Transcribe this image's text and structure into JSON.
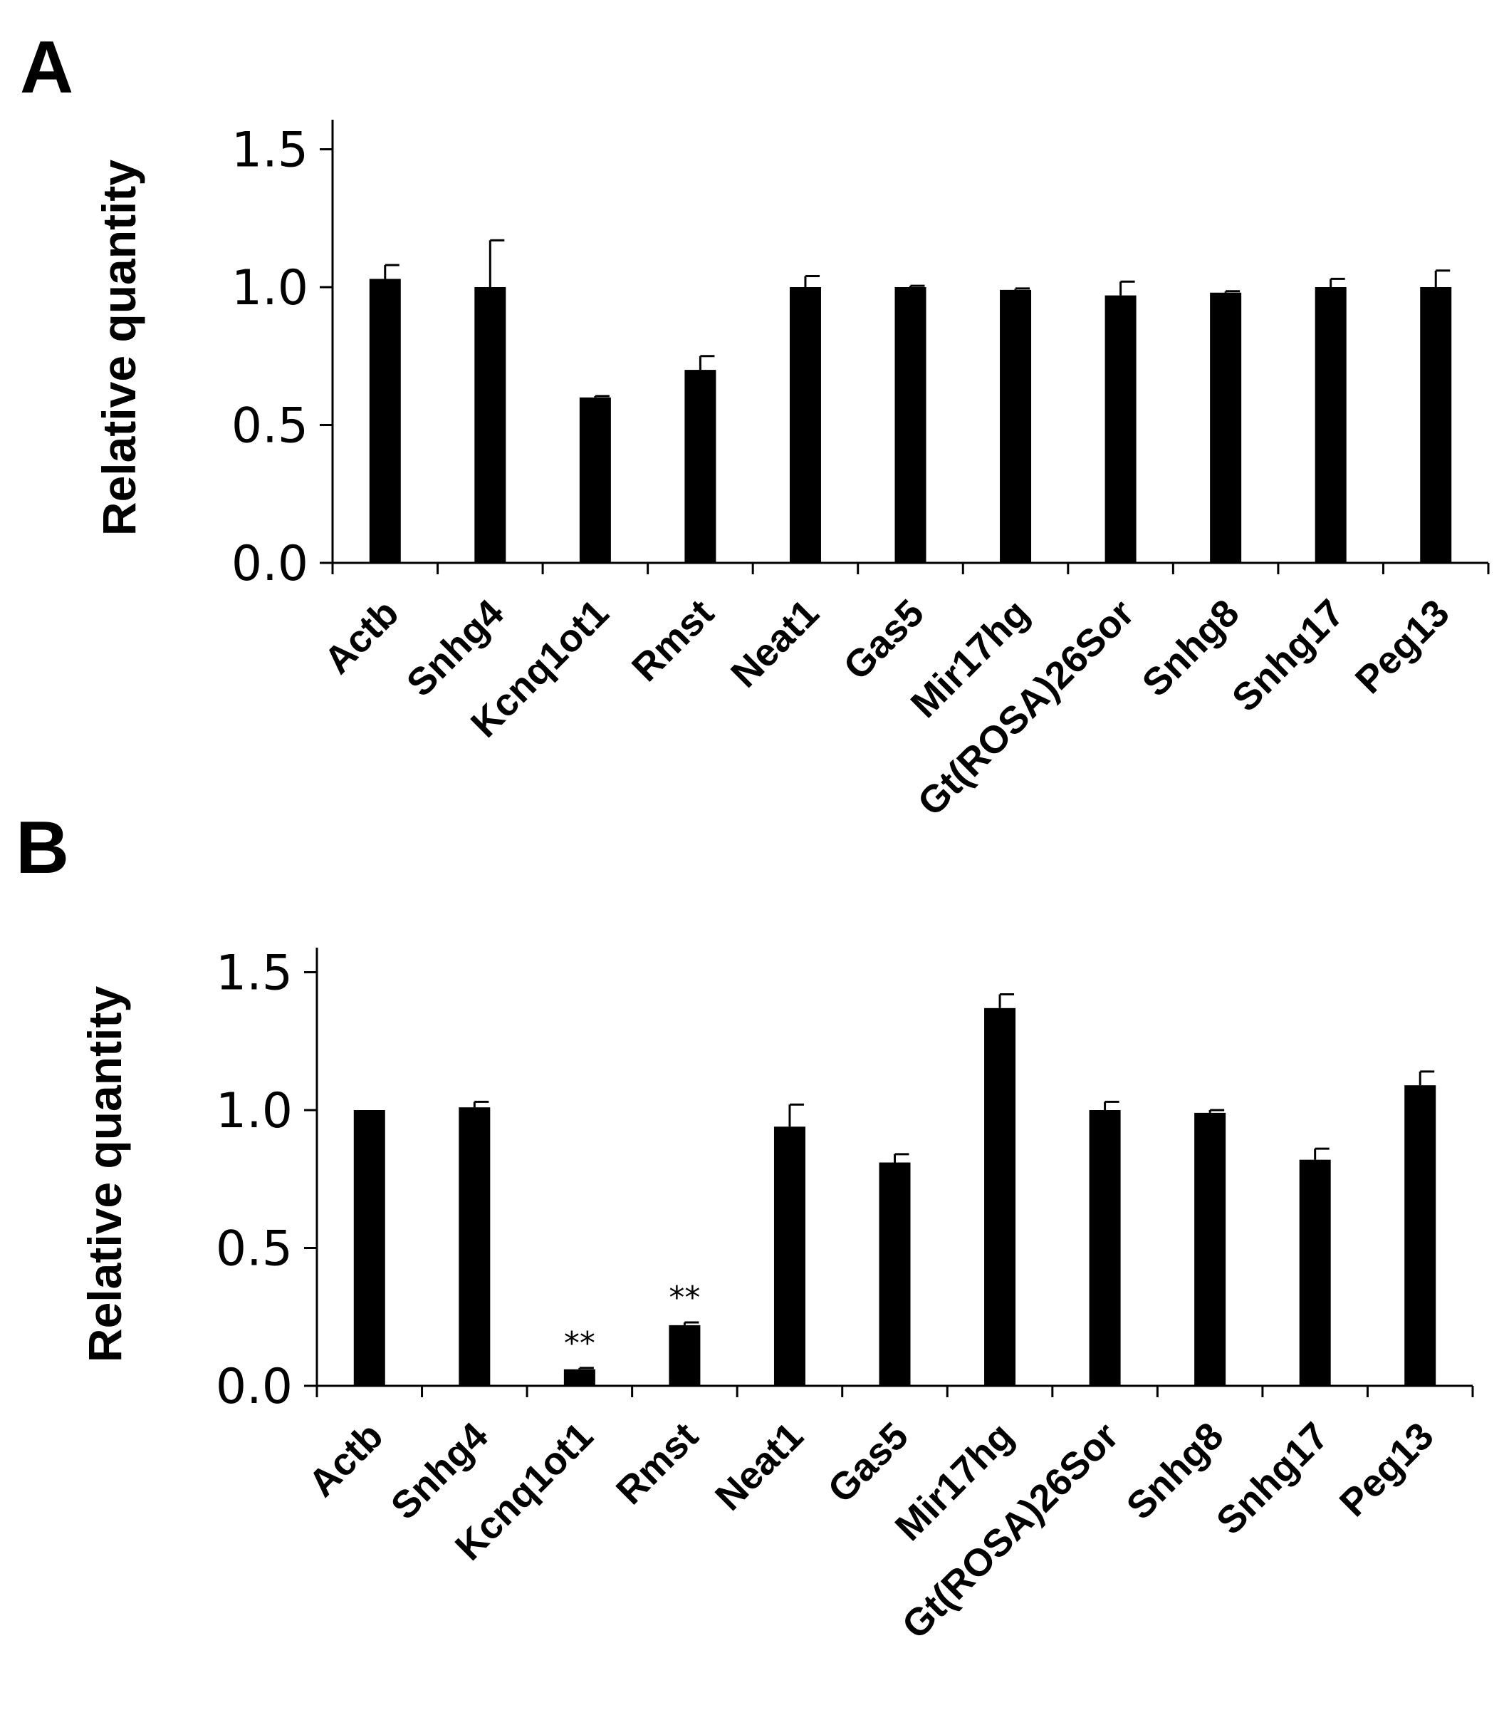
{
  "chart_data": [
    {
      "panel": "A",
      "type": "bar",
      "title": "",
      "xlabel": "",
      "ylabel": "Relative quantity",
      "ylim": [
        0,
        1.6
      ],
      "yticks": [
        "0.0",
        "0.5",
        "1.0",
        "1.5"
      ],
      "categories": [
        "Actb",
        "Snhg4",
        "Kcnq1ot1",
        "Rmst",
        "Neat1",
        "Gas5",
        "Mir17hg",
        "Gt(ROSA)26Sor",
        "Snhg8",
        "Snhg17",
        "Peg13"
      ],
      "values": [
        1.03,
        1.0,
        0.6,
        0.7,
        1.0,
        1.0,
        0.99,
        0.97,
        0.98,
        1.0,
        1.0
      ],
      "errors": [
        0.05,
        0.17,
        0.005,
        0.05,
        0.04,
        0.005,
        0.005,
        0.05,
        0.005,
        0.03,
        0.06
      ],
      "annotations": [
        "",
        "",
        "",
        "",
        "",
        "",
        "",
        "",
        "",
        "",
        ""
      ]
    },
    {
      "panel": "B",
      "type": "bar",
      "title": "",
      "xlabel": "",
      "ylabel": "Relative quantity",
      "ylim": [
        0,
        1.6
      ],
      "yticks": [
        "0.0",
        "0.5",
        "1.0",
        "1.5"
      ],
      "categories": [
        "Actb",
        "Snhg4",
        "Kcnq1ot1",
        "Rmst",
        "Neat1",
        "Gas5",
        "Mir17hg",
        "Gt(ROSA)26Sor",
        "Snhg8",
        "Snhg17",
        "Peg13"
      ],
      "values": [
        1.0,
        1.01,
        0.06,
        0.22,
        0.94,
        0.81,
        1.37,
        1.0,
        0.99,
        0.82,
        1.09
      ],
      "errors": [
        0.0,
        0.02,
        0.005,
        0.01,
        0.08,
        0.03,
        0.05,
        0.03,
        0.01,
        0.04,
        0.05
      ],
      "annotations": [
        "",
        "",
        "**",
        "**",
        "",
        "",
        "",
        "",
        "",
        "",
        ""
      ]
    }
  ]
}
